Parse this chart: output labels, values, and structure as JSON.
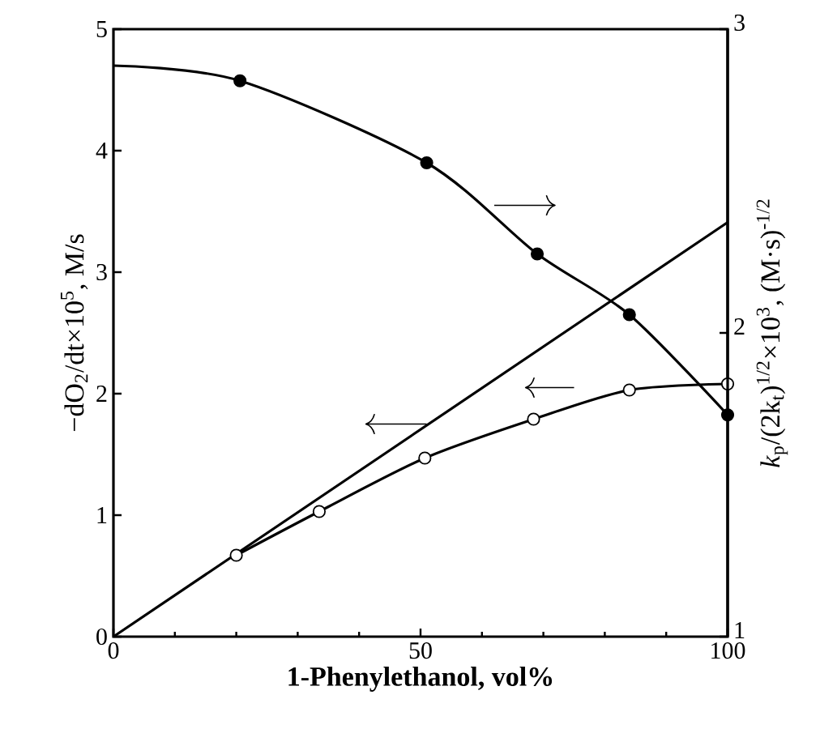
{
  "chart_data": {
    "type": "line",
    "xlabel": "1-Phenylethanol, vol%",
    "ylabel": "−dO$_{2}$/dt×10$^{5}$, M/s",
    "y2label": "*k*$_{p}$/(2k$_{t}$)$^{1/2}$×10$^{3}$, (M·s)$^{-1/2}$",
    "xlim": [
      0,
      100
    ],
    "xticks": [
      0,
      50,
      100
    ],
    "ylim": [
      0,
      5
    ],
    "yticks": [
      0,
      1,
      2,
      3,
      4,
      5
    ],
    "y2lim": [
      1,
      3
    ],
    "y2ticks": [
      1,
      2,
      3
    ],
    "grid": false,
    "series": [
      {
        "color": "#000000",
        "marker": "none",
        "x": [
          0,
          100
        ],
        "values": [
          0,
          3.41
        ]
      },
      {
        "color": "#000000",
        "marker": "none",
        "x": [
          20,
          33.5,
          50.7,
          68.4,
          84,
          100
        ],
        "values": [
          0.67,
          1.03,
          1.47,
          1.79,
          2.03,
          2.08
        ]
      },
      {
        "type": "scatter",
        "color": "#ffffff",
        "marker": "circle",
        "x": [
          20,
          33.5,
          50.7,
          68.4,
          84,
          100
        ],
        "values": [
          0.67,
          1.03,
          1.47,
          1.79,
          2.03,
          2.08
        ]
      },
      {
        "axis": "y2",
        "color": "#000000",
        "marker": "none",
        "x": [
          0,
          20.6,
          51,
          69,
          84,
          100
        ],
        "values": [
          2.88,
          2.83,
          2.56,
          2.26,
          2.06,
          1.73
        ]
      },
      {
        "type": "scatter",
        "axis": "y2",
        "color": "#000000",
        "marker": "circle",
        "x": [
          20.6,
          51,
          69,
          84,
          100
        ],
        "values": [
          2.83,
          2.56,
          2.26,
          2.06,
          1.73
        ]
      }
    ]
  }
}
